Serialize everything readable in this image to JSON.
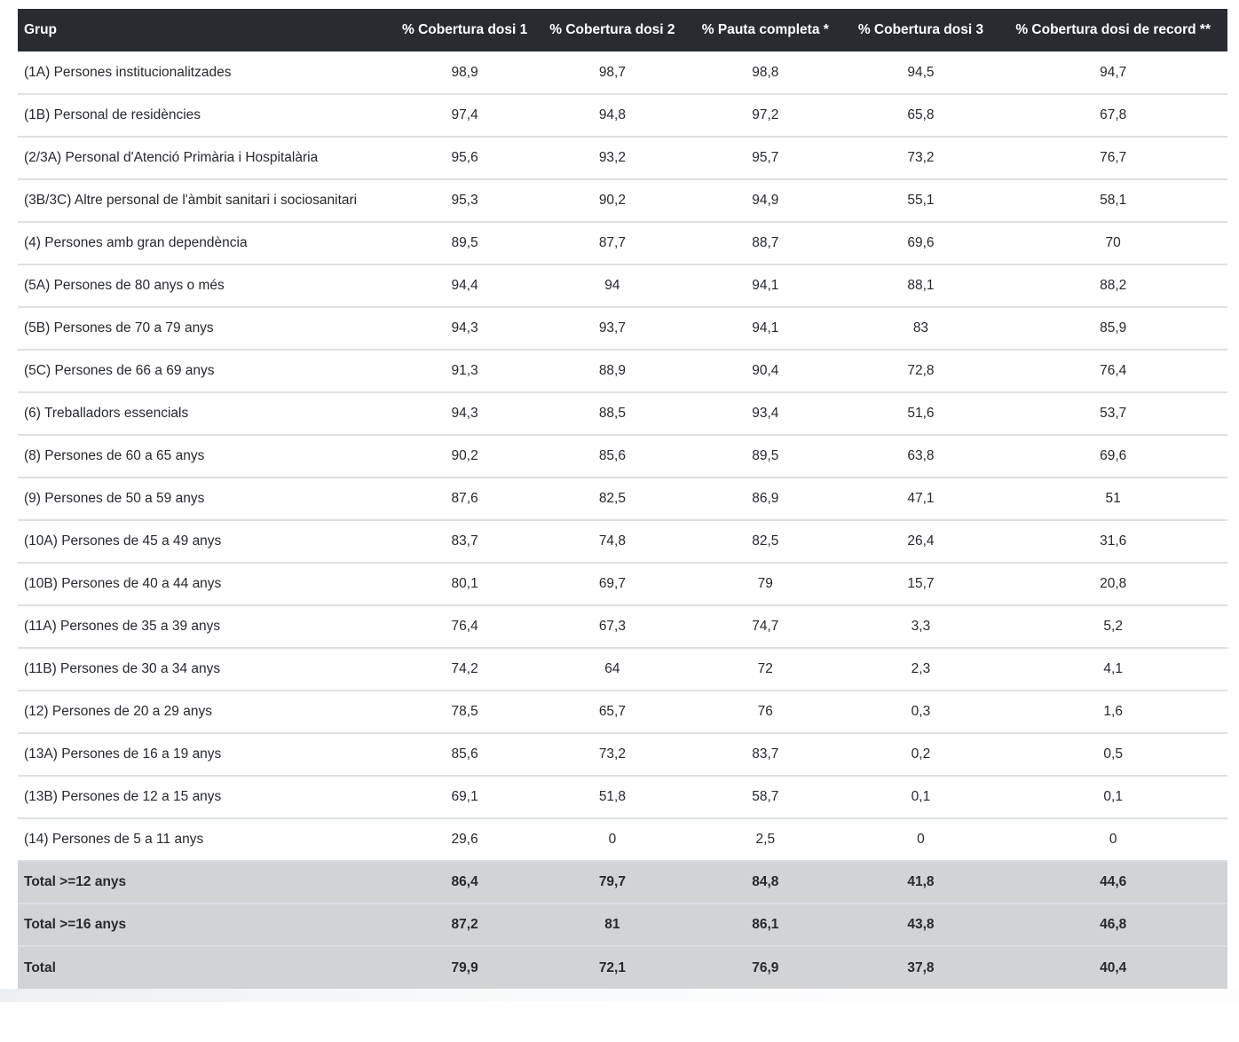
{
  "chart_data": {
    "type": "table",
    "columns": [
      "Grup",
      "% Cobertura dosi 1",
      "% Cobertura dosi 2",
      "% Pauta completa *",
      "% Cobertura dosi 3",
      "% Cobertura dosi de record **"
    ],
    "rows": [
      {
        "group": "(1A) Persones institucionalitzades",
        "values": [
          "98,9",
          "98,7",
          "98,8",
          "94,5",
          "94,7"
        ],
        "is_total": false
      },
      {
        "group": "(1B) Personal de residències",
        "values": [
          "97,4",
          "94,8",
          "97,2",
          "65,8",
          "67,8"
        ],
        "is_total": false
      },
      {
        "group": "(2/3A) Personal d'Atenció Primària i Hospitalària",
        "values": [
          "95,6",
          "93,2",
          "95,7",
          "73,2",
          "76,7"
        ],
        "is_total": false
      },
      {
        "group": "(3B/3C) Altre personal de l'àmbit sanitari i sociosanitari",
        "values": [
          "95,3",
          "90,2",
          "94,9",
          "55,1",
          "58,1"
        ],
        "is_total": false
      },
      {
        "group": "(4) Persones amb gran dependència",
        "values": [
          "89,5",
          "87,7",
          "88,7",
          "69,6",
          "70"
        ],
        "is_total": false
      },
      {
        "group": "(5A) Persones de 80 anys o més",
        "values": [
          "94,4",
          "94",
          "94,1",
          "88,1",
          "88,2"
        ],
        "is_total": false
      },
      {
        "group": "(5B) Persones de 70 a 79 anys",
        "values": [
          "94,3",
          "93,7",
          "94,1",
          "83",
          "85,9"
        ],
        "is_total": false
      },
      {
        "group": "(5C) Persones de 66 a 69 anys",
        "values": [
          "91,3",
          "88,9",
          "90,4",
          "72,8",
          "76,4"
        ],
        "is_total": false
      },
      {
        "group": "(6) Treballadors essencials",
        "values": [
          "94,3",
          "88,5",
          "93,4",
          "51,6",
          "53,7"
        ],
        "is_total": false
      },
      {
        "group": "(8) Persones de 60 a 65 anys",
        "values": [
          "90,2",
          "85,6",
          "89,5",
          "63,8",
          "69,6"
        ],
        "is_total": false
      },
      {
        "group": "(9) Persones de 50 a 59 anys",
        "values": [
          "87,6",
          "82,5",
          "86,9",
          "47,1",
          "51"
        ],
        "is_total": false
      },
      {
        "group": "(10A) Persones de 45 a 49 anys",
        "values": [
          "83,7",
          "74,8",
          "82,5",
          "26,4",
          "31,6"
        ],
        "is_total": false
      },
      {
        "group": "(10B) Persones de 40 a 44 anys",
        "values": [
          "80,1",
          "69,7",
          "79",
          "15,7",
          "20,8"
        ],
        "is_total": false
      },
      {
        "group": "(11A) Persones de 35 a 39 anys",
        "values": [
          "76,4",
          "67,3",
          "74,7",
          "3,3",
          "5,2"
        ],
        "is_total": false
      },
      {
        "group": "(11B) Persones de 30 a 34 anys",
        "values": [
          "74,2",
          "64",
          "72",
          "2,3",
          "4,1"
        ],
        "is_total": false
      },
      {
        "group": "(12) Persones de 20 a 29 anys",
        "values": [
          "78,5",
          "65,7",
          "76",
          "0,3",
          "1,6"
        ],
        "is_total": false
      },
      {
        "group": "(13A) Persones de 16 a 19 anys",
        "values": [
          "85,6",
          "73,2",
          "83,7",
          "0,2",
          "0,5"
        ],
        "is_total": false
      },
      {
        "group": "(13B) Persones de 12 a 15 anys",
        "values": [
          "69,1",
          "51,8",
          "58,7",
          "0,1",
          "0,1"
        ],
        "is_total": false
      },
      {
        "group": "(14) Persones de 5 a 11 anys",
        "values": [
          "29,6",
          "0",
          "2,5",
          "0",
          "0"
        ],
        "is_total": false
      },
      {
        "group": "Total >=12 anys",
        "values": [
          "86,4",
          "79,7",
          "84,8",
          "41,8",
          "44,6"
        ],
        "is_total": true
      },
      {
        "group": "Total >=16 anys",
        "values": [
          "87,2",
          "81",
          "86,1",
          "43,8",
          "46,8"
        ],
        "is_total": true
      },
      {
        "group": "Total",
        "values": [
          "79,9",
          "72,1",
          "76,9",
          "37,8",
          "40,4"
        ],
        "is_total": true
      }
    ],
    "layout": {
      "grid": "horizontal-dividers",
      "header_position": "top",
      "value_alignment": "center"
    }
  },
  "colors": {
    "header_bg": "#282c31",
    "header_text": "#ffffff",
    "row_divider": "#dde1e4",
    "total_row_bg": "#d1d3d5",
    "total_row_divider": "#d9dfe5",
    "body_text": "#26292e"
  }
}
